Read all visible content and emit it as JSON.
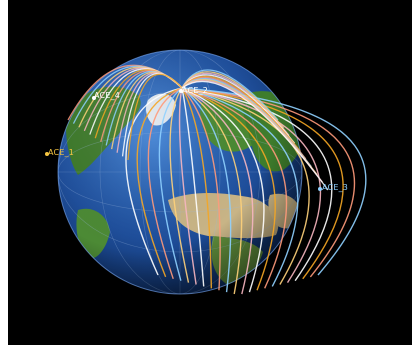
{
  "view": {
    "background": "#000000",
    "globe": {
      "ocean": "#1f4f9c",
      "land_green": "#3d7a2a",
      "desert": "#c8b486",
      "ice": "#dfe7ef",
      "rim": "#7fb0ff"
    }
  },
  "satellites": [
    {
      "label": "ACE_2",
      "color": "#ffffff"
    },
    {
      "label": "ACE_4",
      "color": "#ffffff"
    },
    {
      "label": "ACE_1",
      "color": "#f4c441"
    },
    {
      "label": "ACE_3",
      "color": "#8fd0ff"
    }
  ],
  "track_colors": [
    "#ffffff",
    "#f5a623",
    "#ff9a7a",
    "#8fd0ff",
    "#ffd27a",
    "#f7b6c0"
  ]
}
